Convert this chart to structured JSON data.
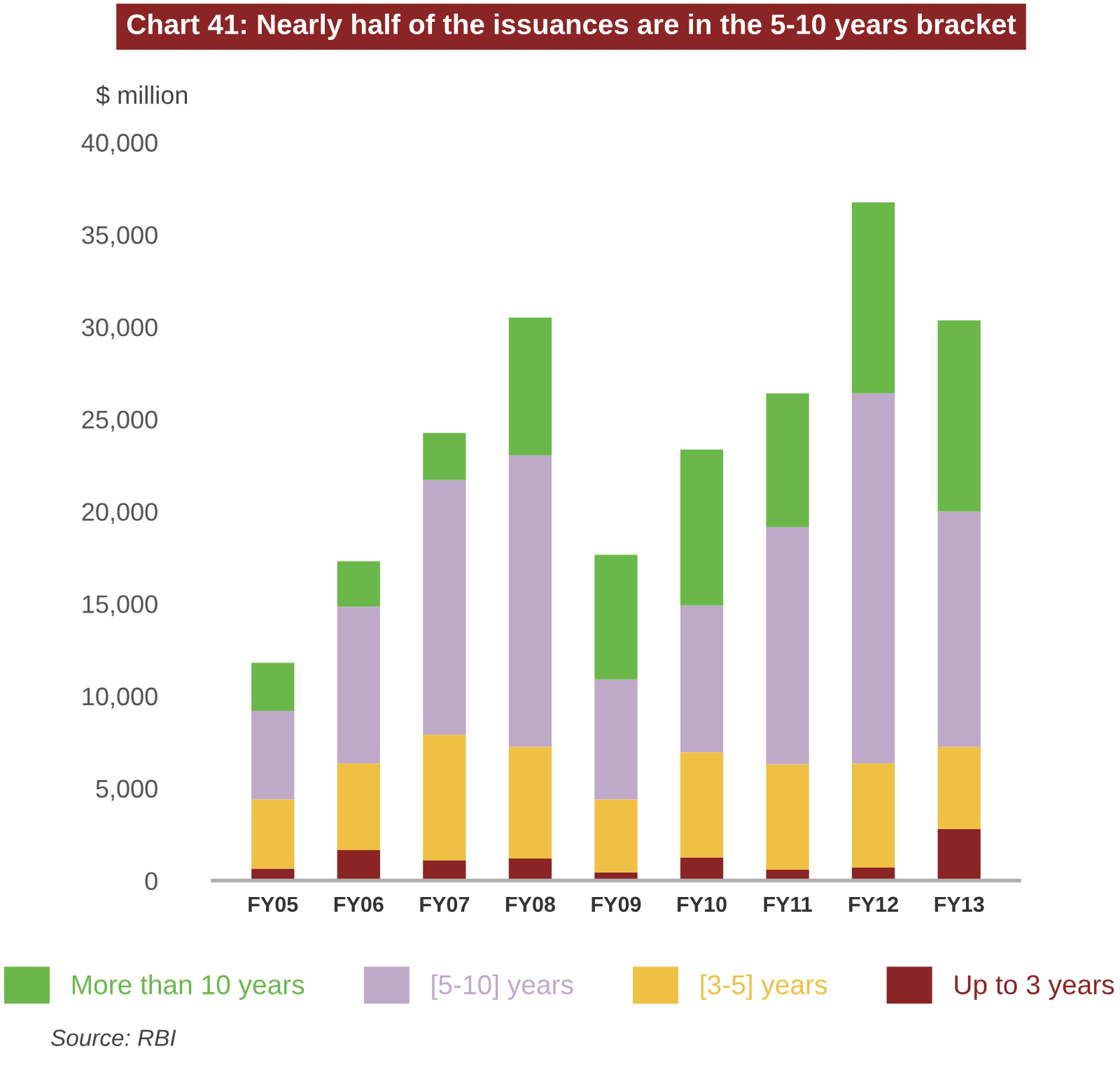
{
  "chart_data": {
    "type": "bar",
    "stacked": true,
    "title": "Chart 41: Nearly half of the issuances are in the 5-10 years bracket",
    "ylabel": "$ million",
    "categories": [
      "FY05",
      "FY06",
      "FY07",
      "FY08",
      "FY09",
      "FY10",
      "FY11",
      "FY12",
      "FY13"
    ],
    "series": [
      {
        "name": "Up to 3 years",
        "color": "#8b2424",
        "values": [
          650,
          1650,
          1100,
          1200,
          450,
          1250,
          600,
          700,
          2800
        ]
      },
      {
        "name": "[3-5] years",
        "color": "#f0c044",
        "values": [
          3750,
          4700,
          6800,
          6050,
          3950,
          5700,
          5700,
          5650,
          4450
        ]
      },
      {
        "name": "[5-10] years",
        "color": "#bfa9c9",
        "values": [
          4800,
          8500,
          13800,
          15800,
          6500,
          7950,
          12850,
          20050,
          12750
        ]
      },
      {
        "name": "More than 10 years",
        "color": "#6ab84a",
        "values": [
          2600,
          2450,
          2550,
          7450,
          6750,
          8450,
          7250,
          10350,
          10350
        ]
      }
    ],
    "ylim": [
      0,
      40000
    ],
    "yticks": [
      0,
      {
        "value": 5000,
        "label": "5,000"
      },
      {
        "value": 10000,
        "label": "10,000"
      },
      {
        "value": 15000,
        "label": "15,000"
      },
      {
        "value": 20000,
        "label": "20,000"
      },
      {
        "value": 25000,
        "label": "25,000"
      },
      {
        "value": 30000,
        "label": "30,000"
      },
      {
        "value": 35000,
        "label": "35,000"
      },
      {
        "value": 40000,
        "label": "40,000"
      }
    ],
    "grid": false,
    "legend": "bottom",
    "annotations": [
      "Source: RBI"
    ]
  }
}
